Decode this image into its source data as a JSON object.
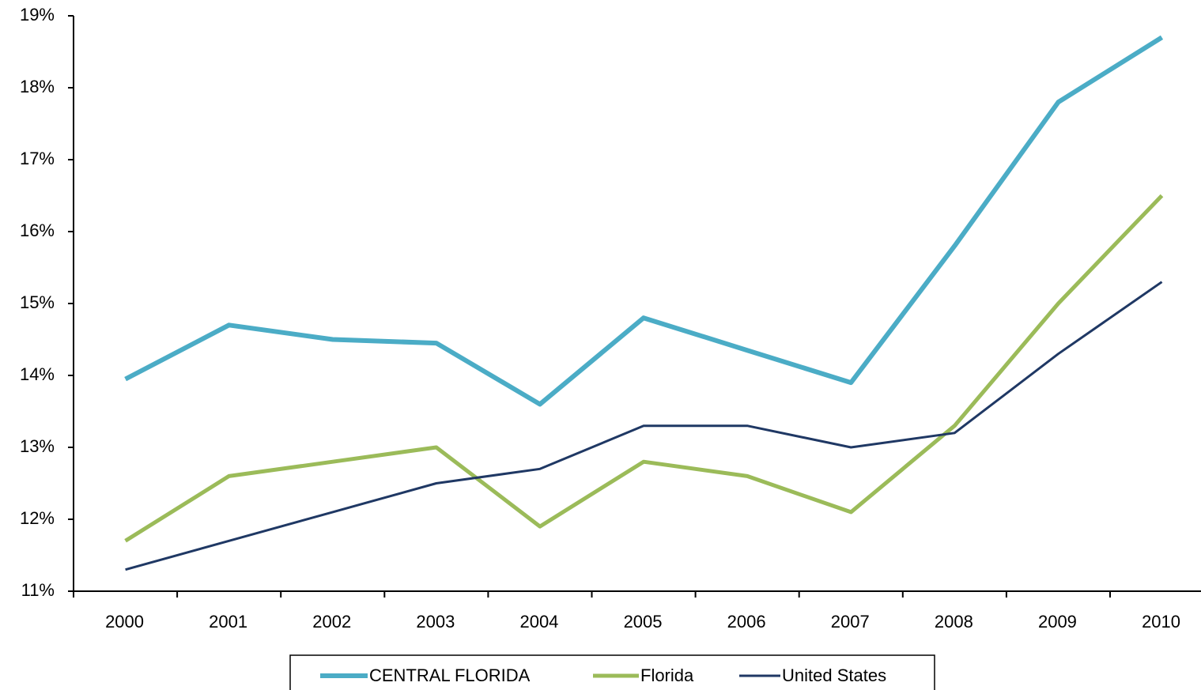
{
  "chart_data": {
    "type": "line",
    "categories": [
      "2000",
      "2001",
      "2002",
      "2003",
      "2004",
      "2005",
      "2006",
      "2007",
      "2008",
      "2009",
      "2010"
    ],
    "series": [
      {
        "name": "CENTRAL FLORIDA",
        "color": "#4bacc6",
        "values": [
          13.95,
          14.7,
          14.5,
          14.45,
          13.6,
          14.8,
          14.35,
          13.9,
          15.8,
          17.8,
          18.7
        ]
      },
      {
        "name": "Florida",
        "color": "#9bbb59",
        "values": [
          11.7,
          12.6,
          12.8,
          13.0,
          11.9,
          12.8,
          12.6,
          12.1,
          13.3,
          15.0,
          16.5
        ]
      },
      {
        "name": "United States",
        "color": "#1f3864",
        "values": [
          11.3,
          11.7,
          12.1,
          12.5,
          12.7,
          13.3,
          13.3,
          13.0,
          13.2,
          14.3,
          15.3
        ]
      }
    ],
    "ylim": [
      11,
      19
    ],
    "yticks": [
      {
        "value": 11,
        "label": "11%"
      },
      {
        "value": 12,
        "label": "12%"
      },
      {
        "value": 13,
        "label": "13%"
      },
      {
        "value": 14,
        "label": "14%"
      },
      {
        "value": 15,
        "label": "15%"
      },
      {
        "value": 16,
        "label": "16%"
      },
      {
        "value": 17,
        "label": "17%"
      },
      {
        "value": 18,
        "label": "18%"
      },
      {
        "value": 19,
        "label": "19%"
      }
    ],
    "legend": "bottom"
  }
}
